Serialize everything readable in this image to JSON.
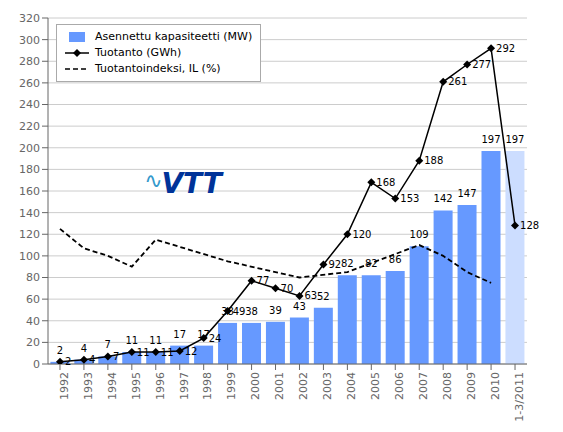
{
  "chart_data": {
    "type": "bar",
    "categories": [
      "1992",
      "1993",
      "1994",
      "1995",
      "1996",
      "1997",
      "1998",
      "1999",
      "2000",
      "2001",
      "2002",
      "2003",
      "2004",
      "2005",
      "2006",
      "2007",
      "2008",
      "2009",
      "2010",
      "1-3/2011"
    ],
    "series": [
      {
        "name": "Asennettu kapasiteetti (MW)",
        "type": "bar",
        "values": [
          2,
          4,
          7,
          11,
          11,
          17,
          17,
          38,
          38,
          39,
          43,
          52,
          82,
          82,
          86,
          109,
          142,
          147,
          197,
          197
        ],
        "colors": [
          "#6699ff",
          "#6699ff",
          "#6699ff",
          "#6699ff",
          "#6699ff",
          "#6699ff",
          "#6699ff",
          "#6699ff",
          "#6699ff",
          "#6699ff",
          "#6699ff",
          "#6699ff",
          "#6699ff",
          "#6699ff",
          "#6699ff",
          "#6699ff",
          "#6699ff",
          "#6699ff",
          "#6699ff",
          "#ccddff"
        ],
        "data_labels": true
      },
      {
        "name": "Tuotanto (GWh)",
        "type": "line",
        "color": "#000000",
        "marker": "diamond",
        "values": [
          2,
          4,
          7,
          11,
          11,
          12,
          24,
          49,
          77,
          70,
          63,
          92,
          120,
          168,
          153,
          188,
          261,
          277,
          292,
          128
        ],
        "data_labels": true
      },
      {
        "name": "Tuotantoindeksi, IL (%)",
        "type": "line",
        "color": "#000000",
        "line_style": "dashed",
        "values": [
          125,
          107,
          100,
          90,
          115,
          null,
          null,
          95,
          null,
          null,
          80,
          null,
          85,
          null,
          null,
          110,
          100,
          85,
          75,
          null
        ]
      }
    ],
    "ylim": [
      0,
      320
    ],
    "yticks": [
      0,
      20,
      40,
      60,
      80,
      100,
      120,
      140,
      160,
      180,
      200,
      220,
      240,
      260,
      280,
      300,
      320
    ],
    "grid": true,
    "legend": "upper left",
    "annotations": [
      {
        "text": "∿",
        "color": "#3399cc"
      },
      {
        "text": "VTT",
        "color": "#003399"
      }
    ]
  }
}
